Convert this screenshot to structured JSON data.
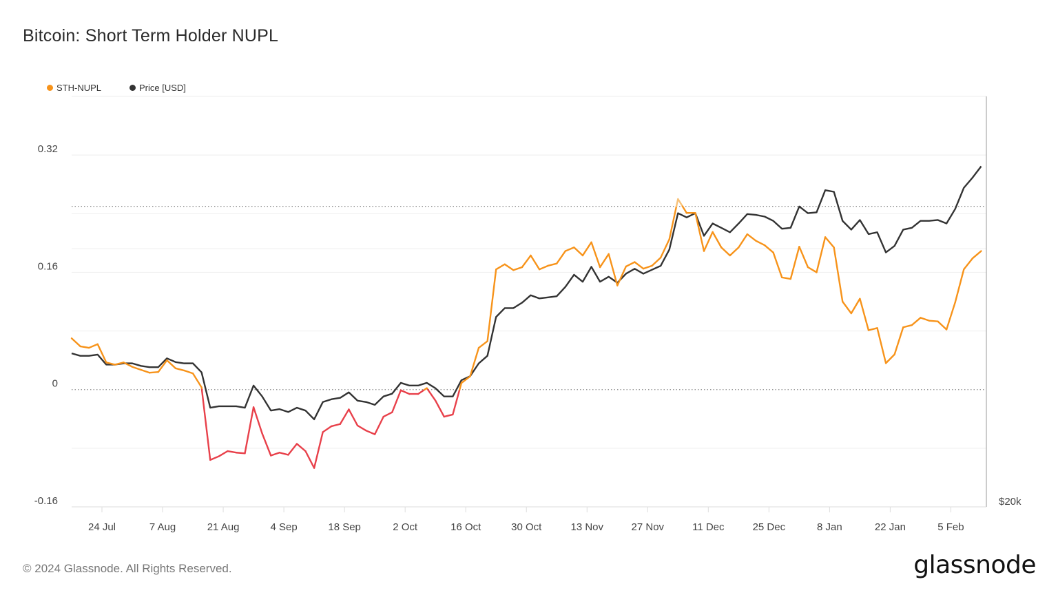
{
  "title": "Bitcoin: Short Term Holder NUPL",
  "footer": "© 2024 Glassnode. All Rights Reserved.",
  "logo": "glassnode",
  "colors": {
    "nupl_positive": "#f7931a",
    "nupl_negative": "#e8404a",
    "nupl_high": "#f7c27a",
    "price": "#333333",
    "grid": "#eeeeee"
  },
  "chart_data": {
    "type": "line",
    "title": "Bitcoin: Short Term Holder NUPL",
    "start_date": "2023-07-17",
    "step_days": 2,
    "legend": [
      {
        "label": "STH-NUPL",
        "color": "#f7931a"
      },
      {
        "label": "Price [USD]",
        "color": "#333333"
      }
    ],
    "legend_placement": "top-left",
    "y_left": {
      "ticks": [
        {
          "value": 0.32,
          "label": "0.32"
        },
        {
          "value": 0.16,
          "label": "0.16"
        },
        {
          "value": 0,
          "label": "0"
        },
        {
          "value": -0.16,
          "label": "-0.16"
        }
      ],
      "range": [
        -0.16,
        0.4
      ],
      "grid": [
        0.32,
        0.24,
        0.16,
        0.08,
        -0.08
      ],
      "reference_lines": [
        0,
        0.25
      ]
    },
    "y_right": {
      "scale": "log",
      "range": [
        20000,
        60200
      ],
      "ticks": [
        {
          "value": 20000,
          "label": "$20k"
        }
      ],
      "grid": [
        40000
      ]
    },
    "x_ticks": [
      {
        "date": "2023-07-24",
        "label": "24 Jul"
      },
      {
        "date": "2023-08-07",
        "label": "7 Aug"
      },
      {
        "date": "2023-08-21",
        "label": "21 Aug"
      },
      {
        "date": "2023-09-04",
        "label": "4 Sep"
      },
      {
        "date": "2023-09-18",
        "label": "18 Sep"
      },
      {
        "date": "2023-10-02",
        "label": "2 Oct"
      },
      {
        "date": "2023-10-16",
        "label": "16 Oct"
      },
      {
        "date": "2023-10-30",
        "label": "30 Oct"
      },
      {
        "date": "2023-11-13",
        "label": "13 Nov"
      },
      {
        "date": "2023-11-27",
        "label": "27 Nov"
      },
      {
        "date": "2023-12-11",
        "label": "11 Dec"
      },
      {
        "date": "2023-12-25",
        "label": "25 Dec"
      },
      {
        "date": "2024-01-08",
        "label": "8 Jan"
      },
      {
        "date": "2024-01-22",
        "label": "22 Jan"
      },
      {
        "date": "2024-02-05",
        "label": "5 Feb"
      }
    ],
    "x_range_days": [
      0,
      211.2
    ],
    "series": [
      {
        "name": "STH-NUPL",
        "axis": "left",
        "values": [
          0.07,
          0.059,
          0.057,
          0.062,
          0.037,
          0.034,
          0.037,
          0.031,
          0.027,
          0.023,
          0.024,
          0.04,
          0.029,
          0.026,
          0.022,
          0.003,
          -0.096,
          -0.091,
          -0.084,
          -0.086,
          -0.087,
          -0.024,
          -0.06,
          -0.09,
          -0.086,
          -0.089,
          -0.074,
          -0.084,
          -0.107,
          -0.058,
          -0.05,
          -0.047,
          -0.027,
          -0.049,
          -0.056,
          -0.061,
          -0.037,
          -0.031,
          -0.001,
          -0.006,
          -0.006,
          0.002,
          -0.015,
          -0.037,
          -0.034,
          0.009,
          0.018,
          0.057,
          0.066,
          0.164,
          0.171,
          0.163,
          0.167,
          0.183,
          0.164,
          0.169,
          0.172,
          0.189,
          0.194,
          0.183,
          0.201,
          0.167,
          0.185,
          0.142,
          0.168,
          0.174,
          0.165,
          0.169,
          0.18,
          0.205,
          0.26,
          0.241,
          0.241,
          0.189,
          0.215,
          0.194,
          0.183,
          0.194,
          0.212,
          0.203,
          0.197,
          0.187,
          0.153,
          0.151,
          0.195,
          0.167,
          0.16,
          0.208,
          0.194,
          0.12,
          0.104,
          0.124,
          0.081,
          0.084,
          0.036,
          0.048,
          0.085,
          0.088,
          0.098,
          0.094,
          0.093,
          0.082,
          0.119,
          0.164,
          0.179,
          0.189
        ]
      },
      {
        "name": "Price [USD]",
        "axis": "right",
        "values": [
          30200,
          30000,
          30000,
          30100,
          29300,
          29300,
          29400,
          29400,
          29200,
          29100,
          29100,
          29800,
          29500,
          29400,
          29400,
          28700,
          26100,
          26200,
          26200,
          26200,
          26100,
          27700,
          26900,
          25900,
          26000,
          25800,
          26100,
          25900,
          25300,
          26500,
          26700,
          26800,
          27200,
          26600,
          26500,
          26300,
          26900,
          27100,
          27900,
          27700,
          27700,
          27900,
          27500,
          26900,
          26900,
          28100,
          28400,
          29400,
          30000,
          33300,
          34100,
          34100,
          34600,
          35300,
          35000,
          35100,
          35200,
          36100,
          37300,
          36600,
          38100,
          36600,
          37100,
          36500,
          37400,
          37900,
          37400,
          37800,
          38200,
          39900,
          44000,
          43500,
          44000,
          41400,
          42800,
          42300,
          41800,
          42800,
          43900,
          43800,
          43600,
          43100,
          42200,
          42300,
          44800,
          44000,
          44100,
          46800,
          46600,
          43100,
          42100,
          43200,
          41600,
          41800,
          39600,
          40300,
          42100,
          42300,
          43100,
          43100,
          43200,
          42800,
          44500,
          47100,
          48400,
          49900
        ]
      }
    ]
  }
}
